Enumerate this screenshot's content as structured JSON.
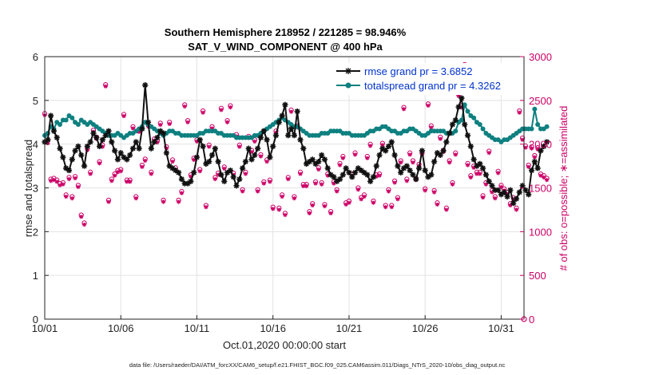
{
  "chart_data": {
    "type": "line",
    "title": "Southern Hemisphere 218952 / 221285 = 98.946%",
    "subtitle": "SAT_V_WIND_COMPONENT @ 400 hPa",
    "xlabel": "Oct.01,2020 00:00:00 start",
    "ylabel": "rmse and totalspread",
    "ylabel_right": "# of obs: o=possible; ∗=assimilated",
    "footnote": "data file: /Users/raeder/DAI/ATM_forcXX/CAM6_setup/f.e21.FHIST_BGC.f09_025.CAM6assim.011/Diags_NTrS_2020-10/obs_diag_output.nc",
    "xlim": [
      1,
      32.5
    ],
    "ylim": [
      0,
      6
    ],
    "ylim_right": [
      0,
      3000
    ],
    "xticks": [
      1,
      6,
      11,
      16,
      21,
      26,
      31
    ],
    "xtick_labels": [
      "10/01",
      "10/06",
      "10/11",
      "10/16",
      "10/21",
      "10/26",
      "10/31"
    ],
    "yticks": [
      0,
      1,
      2,
      3,
      4,
      5,
      6
    ],
    "yticks_right": [
      0,
      500,
      1000,
      1500,
      2000,
      2500,
      3000
    ],
    "grid": true,
    "legend_position": "top-right",
    "series": [
      {
        "name": "rmse grand pr = 3.6852",
        "color": "#111111",
        "marker": "asterisk",
        "values": [
          4.05,
          4.1,
          4.65,
          4.3,
          4.15,
          3.9,
          3.7,
          3.45,
          3.4,
          3.65,
          3.85,
          3.95,
          3.75,
          3.5,
          3.95,
          4.05,
          4.25,
          4.15,
          3.95,
          4.1,
          4.2,
          4.3,
          4.05,
          3.85,
          3.65,
          3.8,
          3.7,
          3.65,
          3.75,
          3.9,
          4.05,
          3.9,
          4.35,
          5.35,
          4.5,
          3.9,
          4.05,
          4.15,
          4.3,
          4.25,
          3.8,
          3.5,
          3.45,
          3.4,
          3.35,
          3.2,
          3.1,
          3.1,
          3.15,
          3.35,
          3.7,
          4.1,
          3.95,
          3.55,
          3.6,
          3.75,
          3.9,
          3.6,
          3.3,
          3.15,
          3.35,
          3.4,
          3.25,
          3.05,
          3.2,
          3.45,
          3.6,
          3.9,
          3.65,
          3.75,
          3.9,
          4.15,
          4.3,
          4.1,
          3.7,
          3.95,
          4.2,
          4.5,
          4.65,
          4.9,
          4.2,
          4.35,
          4.2,
          4.75,
          4.1,
          3.9,
          3.55,
          3.6,
          3.65,
          3.55,
          3.6,
          3.75,
          3.65,
          3.45,
          3.3,
          3.25,
          3.15,
          3.2,
          3.3,
          3.45,
          3.35,
          3.25,
          3.35,
          3.45,
          3.4,
          3.35,
          3.3,
          3.15,
          3.25,
          3.5,
          3.75,
          3.9,
          3.85,
          3.95,
          4.05,
          3.75,
          3.5,
          3.35,
          3.45,
          3.5,
          3.4,
          3.3,
          3.2,
          3.45,
          3.85,
          3.4,
          3.25,
          3.3,
          3.6,
          3.8,
          3.75,
          3.85,
          4.05,
          4.25,
          4.45,
          4.55,
          4.85,
          5.05,
          4.45,
          4.2,
          3.95,
          3.65,
          3.5,
          3.55,
          3.45,
          3.3,
          3.15,
          3.05,
          2.95,
          2.95,
          2.85,
          2.9,
          2.8,
          2.95,
          2.65,
          2.75,
          2.9,
          3.05,
          2.95,
          2.85,
          3.4,
          3.6,
          3.45,
          3.85,
          3.95,
          4.05
        ]
      },
      {
        "name": "totalspread grand pr = 4.3262",
        "color": "#0e8080",
        "marker": "dot",
        "values": [
          4.2,
          4.25,
          4.4,
          4.35,
          4.5,
          4.45,
          4.55,
          4.55,
          4.65,
          4.6,
          4.5,
          4.45,
          4.55,
          4.5,
          4.45,
          4.5,
          4.45,
          4.4,
          4.35,
          4.3,
          4.25,
          4.2,
          4.2,
          4.2,
          4.25,
          4.2,
          4.15,
          4.2,
          4.25,
          4.25,
          4.3,
          4.35,
          4.4,
          4.5,
          4.45,
          4.4,
          4.35,
          4.3,
          4.25,
          4.2,
          4.25,
          4.3,
          4.3,
          4.25,
          4.25,
          4.2,
          4.2,
          4.2,
          4.2,
          4.2,
          4.2,
          4.25,
          4.25,
          4.3,
          4.3,
          4.3,
          4.3,
          4.25,
          4.25,
          4.2,
          4.2,
          4.2,
          4.2,
          4.15,
          4.15,
          4.15,
          4.15,
          4.15,
          4.15,
          4.2,
          4.2,
          4.25,
          4.3,
          4.35,
          4.4,
          4.45,
          4.5,
          4.55,
          4.6,
          4.55,
          4.5,
          4.45,
          4.4,
          4.4,
          4.35,
          4.3,
          4.25,
          4.2,
          4.2,
          4.2,
          4.2,
          4.25,
          4.25,
          4.25,
          4.3,
          4.3,
          4.3,
          4.3,
          4.25,
          4.25,
          4.25,
          4.2,
          4.2,
          4.2,
          4.2,
          4.2,
          4.25,
          4.3,
          4.3,
          4.35,
          4.35,
          4.4,
          4.4,
          4.35,
          4.3,
          4.3,
          4.25,
          4.25,
          4.3,
          4.3,
          4.35,
          4.35,
          4.3,
          4.25,
          4.2,
          4.2,
          4.25,
          4.3,
          4.3,
          4.3,
          4.3,
          4.3,
          4.25,
          4.25,
          4.25,
          4.3,
          4.5,
          4.55,
          4.9,
          4.75,
          4.65,
          4.6,
          4.5,
          4.45,
          4.35,
          4.25,
          4.2,
          4.15,
          4.1,
          4.1,
          4.05,
          4.1,
          4.1,
          4.15,
          4.2,
          4.25,
          4.3,
          4.35,
          4.35,
          4.35,
          4.35,
          4.8,
          4.45,
          4.35,
          4.35,
          4.4
        ]
      },
      {
        "name": "obs possible",
        "axis": "right",
        "color": "#cc0066",
        "marker": "circle",
        "values": [
          2350,
          2040,
          1600,
          1610,
          1590,
          1550,
          1560,
          1420,
          1620,
          1400,
          1630,
          1530,
          1190,
          1100,
          1950,
          1680,
          2160,
          2080,
          1800,
          1990,
          2680,
          1360,
          1600,
          1660,
          1700,
          1710,
          2340,
          1590,
          1590,
          2200,
          1400,
          2160,
          1760,
          1830,
          2220,
          1680,
          2060,
          2040,
          2240,
          1360,
          1970,
          2250,
          1820,
          1730,
          1360,
          1460,
          2450,
          2270,
          1650,
          1840,
          2050,
          1710,
          2380,
          1300,
          1990,
          2200,
          1620,
          1670,
          2410,
          1740,
          2270,
          2440,
          1670,
          2110,
          1990,
          1480,
          1680,
          2090,
          1930,
          2050,
          1480,
          1880,
          1570,
          1820,
          1590,
          1280,
          2150,
          1270,
          1420,
          1210,
          1620,
          2390,
          1400,
          2210,
          1680,
          1540,
          1540,
          1230,
          1320,
          1570,
          1730,
          1560,
          1310,
          1660,
          1230,
          1570,
          1480,
          1780,
          1860,
          1330,
          1350,
          1660,
          1900,
          1500,
          1390,
          1420,
          1860,
          2000,
          1350,
          1650,
          1660,
          2010,
          1300,
          1480,
          1300,
          1580,
          1390,
          1810,
          2420,
          1600,
          1900,
          1810,
          1610,
          1770,
          1900,
          1490,
          2460,
          2210,
          1470,
          1330,
          2080,
          1930,
          1270,
          1810,
          1560,
          1900,
          2570,
          2440,
          2910,
          1780,
          1640,
          1750,
          1680,
          1680,
          1410,
          1560,
          1920,
          1470,
          1400,
          1690,
          1530,
          1490,
          1450,
          1320,
          1390,
          1270,
          2380,
          2070,
          1980,
          1760,
          1970,
          1870,
          1960,
          1660,
          1640,
          1610
        ]
      },
      {
        "name": "obs assimilated",
        "axis": "right",
        "color": "#cc0066",
        "marker": "asterisk",
        "values": [
          2330,
          2010,
          1580,
          1590,
          1570,
          1530,
          1540,
          1400,
          1600,
          1380,
          1610,
          1510,
          1170,
          1080,
          1930,
          1660,
          2140,
          2060,
          1780,
          1970,
          2660,
          1340,
          1580,
          1640,
          1680,
          1690,
          2320,
          1570,
          1570,
          2180,
          1380,
          2140,
          1740,
          1810,
          2200,
          1660,
          2040,
          2020,
          2220,
          1340,
          1950,
          2230,
          1800,
          1710,
          1340,
          1440,
          2430,
          2250,
          1630,
          1820,
          2030,
          1690,
          2360,
          1280,
          1970,
          2180,
          1600,
          1650,
          2390,
          1720,
          2250,
          2420,
          1650,
          2090,
          1970,
          1460,
          1660,
          2070,
          1910,
          2030,
          1460,
          1860,
          1550,
          1800,
          1570,
          1260,
          2130,
          1250,
          1400,
          1190,
          1600,
          2370,
          1380,
          2190,
          1660,
          1520,
          1520,
          1210,
          1300,
          1550,
          1710,
          1540,
          1290,
          1640,
          1210,
          1550,
          1460,
          1760,
          1840,
          1310,
          1330,
          1640,
          1880,
          1480,
          1370,
          1400,
          1840,
          1980,
          1330,
          1630,
          1640,
          1990,
          1280,
          1460,
          1280,
          1560,
          1370,
          1790,
          2400,
          1580,
          1880,
          1790,
          1590,
          1750,
          1880,
          1470,
          2440,
          2190,
          1450,
          1310,
          2060,
          1910,
          1250,
          1790,
          1540,
          1880,
          2550,
          2420,
          2890,
          1760,
          1620,
          1730,
          1660,
          1660,
          1390,
          1540,
          1900,
          1450,
          1380,
          1670,
          1510,
          1470,
          1430,
          1300,
          1370,
          1250,
          2360,
          2050,
          1960,
          1740,
          1950,
          1850,
          1940,
          1640,
          1620,
          1590
        ]
      }
    ]
  }
}
